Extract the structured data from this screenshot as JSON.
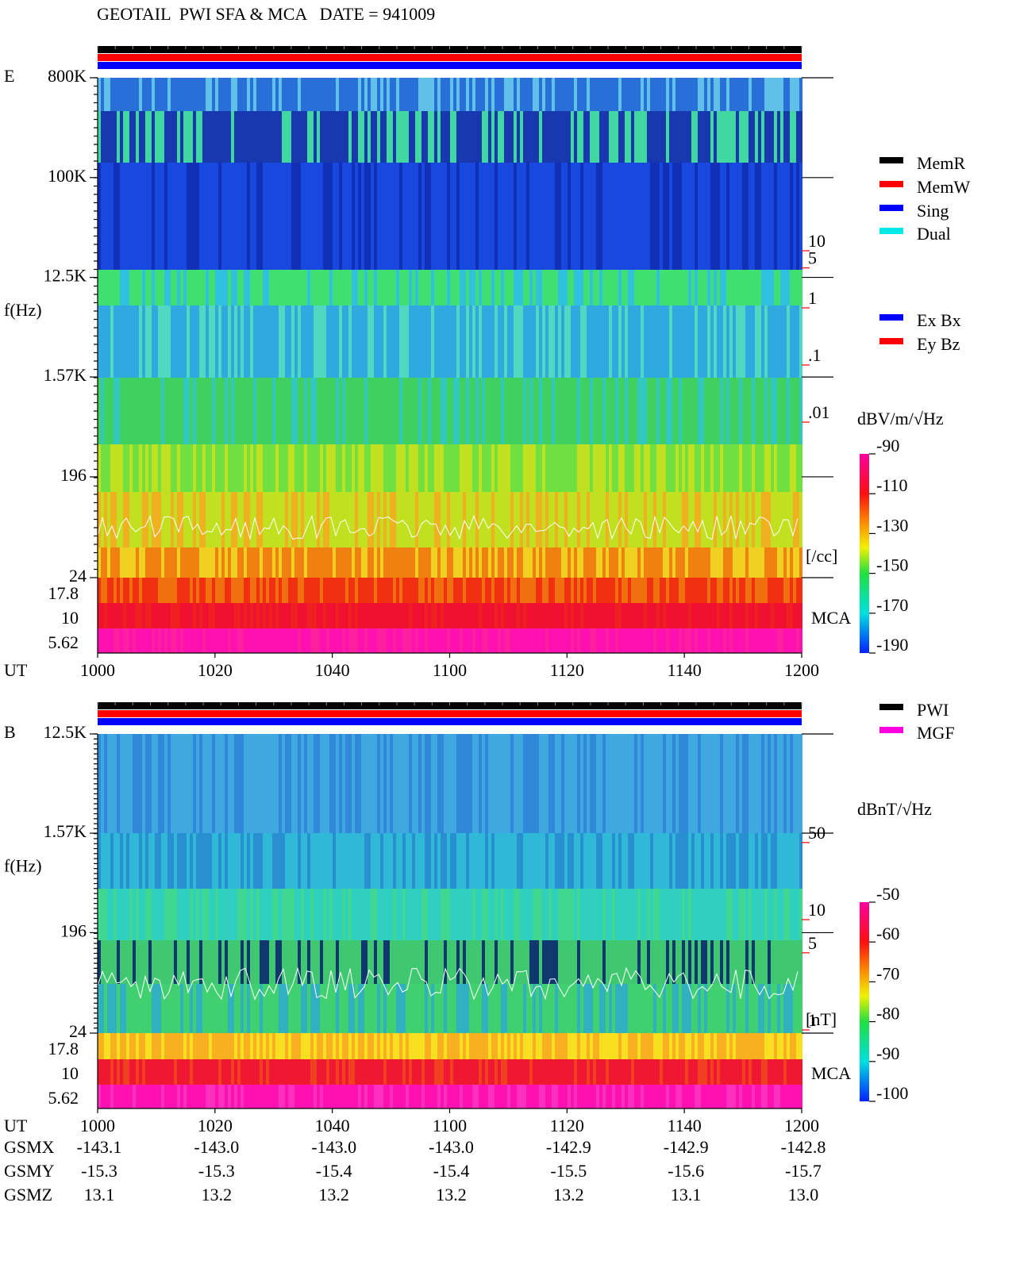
{
  "title": "GEOTAIL  PWI SFA & MCA   DATE = 941009",
  "chart_data": [
    {
      "type": "spectrogram",
      "panel_label": "E",
      "y_label": "f(Hz)",
      "log_y": true,
      "ylim": [
        24,
        800000
      ],
      "yticks": [
        {
          "value": 800000,
          "label": "800K"
        },
        {
          "value": 100000,
          "label": "100K"
        },
        {
          "value": 12500,
          "label": "12.5K"
        },
        {
          "value": 1570,
          "label": "1.57K"
        },
        196,
        24
      ],
      "mca_channels": [
        17.8,
        10,
        5.62
      ],
      "mca_label": "MCA",
      "x_label": "UT",
      "x_ticks": [
        "1000",
        "1020",
        "1040",
        "1100",
        "1120",
        "1140",
        "1200"
      ],
      "status_bar_colors": [
        "#000000",
        "#ff0000",
        "#0000ff"
      ],
      "density_axis": {
        "label": "[/cc]",
        "color": "#ff0000",
        "ticks": [
          10,
          5,
          1,
          {
            "value": 0.1,
            "label": ".1"
          },
          {
            "value": 0.01,
            "label": ".01"
          }
        ]
      },
      "colorbar": {
        "label": "dBV/m/√Hz",
        "lim": [
          -190,
          -90
        ],
        "ticks": [
          -90,
          -110,
          -130,
          -150,
          -170,
          -190
        ]
      },
      "legend": [
        {
          "name": "MemR",
          "color": "#000000"
        },
        {
          "name": "MemW",
          "color": "#ff0000"
        },
        {
          "name": "Sing",
          "color": "#0000ff"
        },
        {
          "name": "Dual",
          "color": "#00e8e8"
        }
      ],
      "legend2": [
        {
          "name": "Ex Bx",
          "color": "#0000ff"
        },
        {
          "name": "Ey Bz",
          "color": "#ff0000"
        }
      ]
    },
    {
      "type": "spectrogram",
      "panel_label": "B",
      "y_label": "f(Hz)",
      "log_y": true,
      "ylim": [
        24,
        12500
      ],
      "yticks": [
        {
          "value": 12500,
          "label": "12.5K"
        },
        {
          "value": 1570,
          "label": "1.57K"
        },
        196,
        24
      ],
      "mca_channels": [
        17.8,
        10,
        5.62
      ],
      "mca_label": "MCA",
      "x_label": "UT",
      "x_ticks": [
        "1000",
        "1020",
        "1040",
        "1100",
        "1120",
        "1140",
        "1200"
      ],
      "status_bar_colors": [
        "#000000",
        "#ff0000",
        "#0000ff"
      ],
      "density_axis": {
        "label": "[nT]",
        "color": "#ff0000",
        "ticks": [
          50,
          10,
          5,
          1
        ]
      },
      "colorbar": {
        "label": "dBnT/√Hz",
        "lim": [
          -100,
          -50
        ],
        "ticks": [
          -50,
          -60,
          -70,
          -80,
          -90,
          -100
        ]
      },
      "legend": [
        {
          "name": "PWI",
          "color": "#000000"
        },
        {
          "name": "MGF",
          "color": "#ff00e0"
        }
      ]
    }
  ],
  "orbit": [
    {
      "name": "GSMX",
      "values": [
        "-143.1",
        "-143.0",
        "-143.0",
        "-143.0",
        "-142.9",
        "-142.9",
        "-142.8"
      ]
    },
    {
      "name": "GSMY",
      "values": [
        "-15.3",
        "-15.3",
        "-15.4",
        "-15.4",
        "-15.5",
        "-15.6",
        "-15.7"
      ]
    },
    {
      "name": "GSMZ",
      "values": [
        "13.1",
        "13.2",
        "13.2",
        "13.2",
        "13.2",
        "13.1",
        "13.0"
      ]
    }
  ]
}
